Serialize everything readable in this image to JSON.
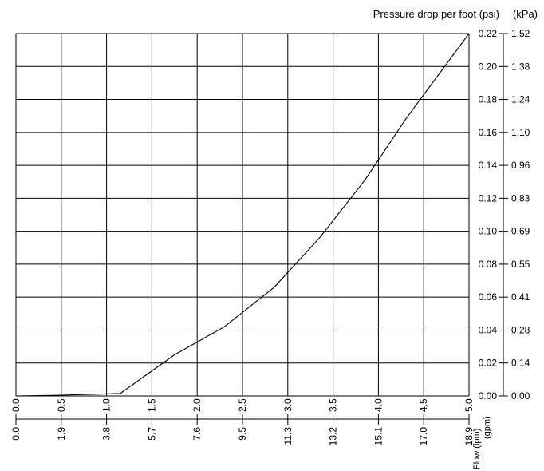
{
  "chart_data": {
    "type": "line",
    "title": "",
    "x_axis_primary": {
      "label_unit": "(gpm)",
      "ticks": [
        "0.0",
        "0.5",
        "1.0",
        "1.5",
        "2.0",
        "2.5",
        "3.0",
        "3.5",
        "4.0",
        "4.5",
        "5.0"
      ],
      "range": [
        0,
        5
      ]
    },
    "x_axis_secondary": {
      "label": "Flow (lpm)",
      "ticks": [
        "0.0",
        "1.9",
        "3.8",
        "5.7",
        "7.6",
        "9.5",
        "11.3",
        "13.2",
        "15.1",
        "17.0",
        "18.9"
      ]
    },
    "y_axis_primary": {
      "label": "Pressure drop per foot (psi)",
      "ticks": [
        "0.00",
        "0.02",
        "0.04",
        "0.06",
        "0.08",
        "0.10",
        "0.12",
        "0.14",
        "0.16",
        "0.18",
        "0.20",
        "0.22"
      ],
      "range": [
        0,
        0.22
      ]
    },
    "y_axis_secondary": {
      "label": "(kPa)",
      "ticks": [
        "0.00",
        "0.14",
        "0.28",
        "0.41",
        "0.55",
        "0.69",
        "0.83",
        "0.96",
        "1.10",
        "1.24",
        "1.38",
        "1.52"
      ]
    },
    "grid": true,
    "series": [
      {
        "x": [
          0.0,
          0.5,
          1.15,
          1.75,
          2.3,
          2.85,
          3.35,
          3.85,
          4.3,
          5.0
        ],
        "y": [
          0.0,
          0.0005,
          0.0015,
          0.025,
          0.042,
          0.066,
          0.096,
          0.131,
          0.168,
          0.22
        ]
      }
    ]
  }
}
